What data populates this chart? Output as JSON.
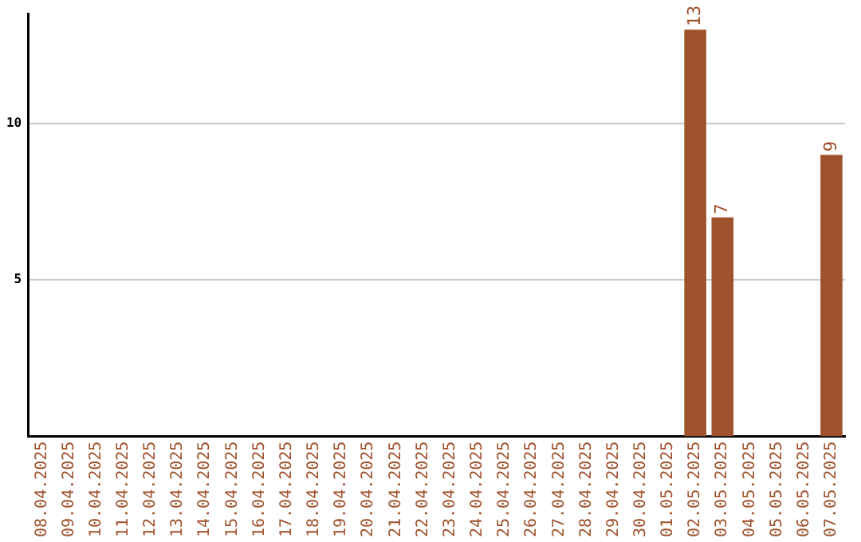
{
  "chart_data": {
    "type": "bar",
    "categories": [
      "08.04.2025",
      "09.04.2025",
      "10.04.2025",
      "11.04.2025",
      "12.04.2025",
      "13.04.2025",
      "14.04.2025",
      "15.04.2025",
      "16.04.2025",
      "17.04.2025",
      "18.04.2025",
      "19.04.2025",
      "20.04.2025",
      "21.04.2025",
      "22.04.2025",
      "23.04.2025",
      "24.04.2025",
      "25.04.2025",
      "26.04.2025",
      "27.04.2025",
      "28.04.2025",
      "29.04.2025",
      "30.04.2025",
      "01.05.2025",
      "02.05.2025",
      "03.05.2025",
      "04.05.2025",
      "05.05.2025",
      "06.05.2025",
      "07.05.2025"
    ],
    "values": [
      0,
      0,
      0,
      0,
      0,
      0,
      0,
      0,
      0,
      0,
      0,
      0,
      0,
      0,
      0,
      0,
      0,
      0,
      0,
      0,
      0,
      0,
      0,
      0,
      13,
      7,
      0,
      0,
      0,
      9
    ],
    "value_labels": [
      null,
      null,
      null,
      null,
      null,
      null,
      null,
      null,
      null,
      null,
      null,
      null,
      null,
      null,
      null,
      null,
      null,
      null,
      null,
      null,
      null,
      null,
      null,
      null,
      "13",
      "7",
      null,
      null,
      null,
      "9"
    ],
    "color": "#a0522d",
    "ylim": [
      0,
      13.5
    ],
    "yticks": [
      5,
      10
    ],
    "grid": "y"
  }
}
